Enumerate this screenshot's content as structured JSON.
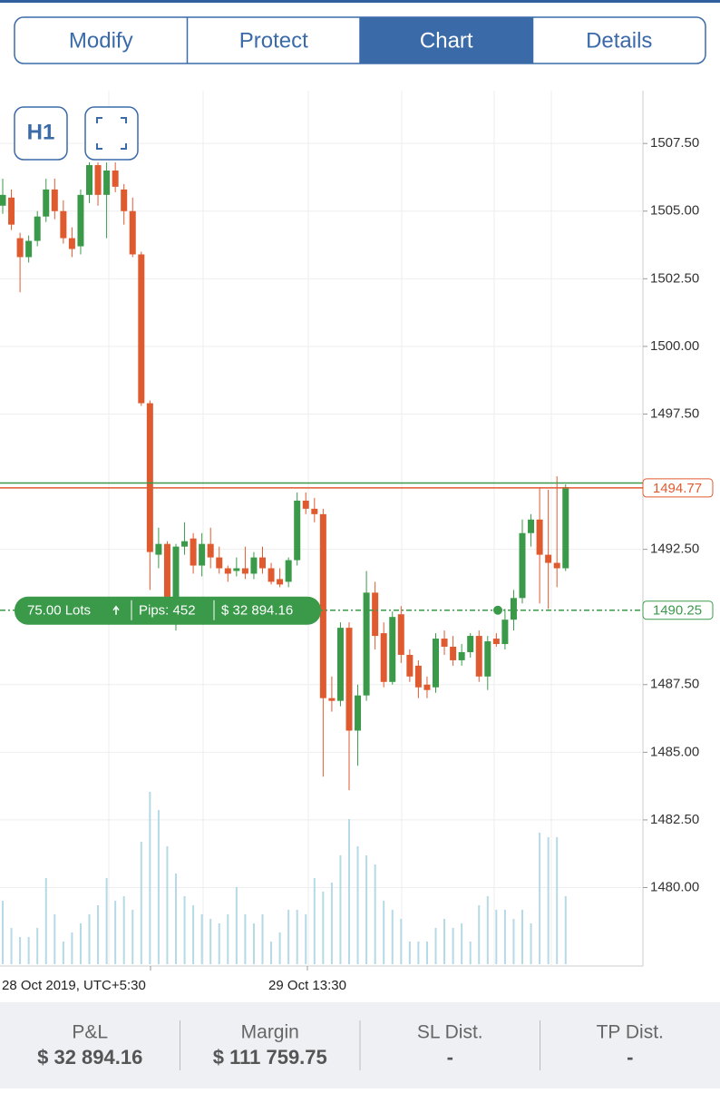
{
  "tabs": [
    "Modify",
    "Protect",
    "Chart",
    "Details"
  ],
  "active_tab": 2,
  "toolbar": {
    "timeframe": "H1"
  },
  "chart": {
    "type": "candlestick",
    "ylim": [
      1477.1,
      1509.45
    ],
    "yticks": [
      {
        "value": 1507.5,
        "label": "1507.50"
      },
      {
        "value": 1505,
        "label": "1505.00"
      },
      {
        "value": 1502.5,
        "label": "1502.50"
      },
      {
        "value": 1500,
        "label": "1500.00"
      },
      {
        "value": 1497.5,
        "label": "1497.50"
      },
      {
        "value": 1492.5,
        "label": "1492.50"
      },
      {
        "value": 1487.5,
        "label": "1487.50"
      },
      {
        "value": 1485,
        "label": "1485.00"
      },
      {
        "value": 1482.5,
        "label": "1482.50"
      },
      {
        "value": 1480,
        "label": "1480.00"
      }
    ],
    "up_color": "#3a9a4a",
    "down_color": "#e05a30",
    "volume_color": "#b5d9e6",
    "candles": [
      {
        "o": 1505.2,
        "h": 1506.2,
        "l": 1504.9,
        "c": 1505.6
      },
      {
        "o": 1505.5,
        "h": 1505.8,
        "l": 1504.3,
        "c": 1504.5
      },
      {
        "o": 1504.0,
        "h": 1504.2,
        "l": 1502.0,
        "c": 1503.3
      },
      {
        "o": 1503.3,
        "h": 1504.1,
        "l": 1503.1,
        "c": 1503.9
      },
      {
        "o": 1503.9,
        "h": 1505.0,
        "l": 1503.7,
        "c": 1504.8
      },
      {
        "o": 1504.8,
        "h": 1506.2,
        "l": 1504.6,
        "c": 1505.8
      },
      {
        "o": 1505.8,
        "h": 1506.2,
        "l": 1504.7,
        "c": 1505.0
      },
      {
        "o": 1505.0,
        "h": 1505.4,
        "l": 1503.8,
        "c": 1504.0
      },
      {
        "o": 1504.0,
        "h": 1504.4,
        "l": 1503.3,
        "c": 1503.6
      },
      {
        "o": 1503.7,
        "h": 1505.8,
        "l": 1503.4,
        "c": 1505.6
      },
      {
        "o": 1505.6,
        "h": 1506.8,
        "l": 1505.3,
        "c": 1506.7
      },
      {
        "o": 1506.7,
        "h": 1506.8,
        "l": 1505.2,
        "c": 1505.6
      },
      {
        "o": 1505.6,
        "h": 1506.8,
        "l": 1504.0,
        "c": 1506.5
      },
      {
        "o": 1506.5,
        "h": 1506.8,
        "l": 1505.7,
        "c": 1505.9
      },
      {
        "o": 1505.8,
        "h": 1506.0,
        "l": 1504.5,
        "c": 1505.0
      },
      {
        "o": 1505.0,
        "h": 1505.5,
        "l": 1503.3,
        "c": 1503.4
      },
      {
        "o": 1503.4,
        "h": 1503.5,
        "l": 1497.8,
        "c": 1497.9
      },
      {
        "o": 1497.9,
        "h": 1498.0,
        "l": 1491.0,
        "c": 1492.4
      },
      {
        "o": 1492.3,
        "h": 1493.3,
        "l": 1491.8,
        "c": 1492.7
      },
      {
        "o": 1492.7,
        "h": 1492.8,
        "l": 1489.9,
        "c": 1490.3
      },
      {
        "o": 1490.3,
        "h": 1492.7,
        "l": 1489.5,
        "c": 1492.6
      },
      {
        "o": 1492.6,
        "h": 1493.5,
        "l": 1492.3,
        "c": 1492.8
      },
      {
        "o": 1492.9,
        "h": 1493.1,
        "l": 1491.6,
        "c": 1491.9
      },
      {
        "o": 1491.9,
        "h": 1493.1,
        "l": 1491.5,
        "c": 1492.7
      },
      {
        "o": 1492.7,
        "h": 1493.3,
        "l": 1491.8,
        "c": 1492.2
      },
      {
        "o": 1492.2,
        "h": 1492.6,
        "l": 1491.6,
        "c": 1491.8
      },
      {
        "o": 1491.8,
        "h": 1491.9,
        "l": 1491.3,
        "c": 1491.6
      },
      {
        "o": 1491.7,
        "h": 1492.2,
        "l": 1491.5,
        "c": 1491.8
      },
      {
        "o": 1491.8,
        "h": 1492.6,
        "l": 1491.4,
        "c": 1491.6
      },
      {
        "o": 1491.6,
        "h": 1492.4,
        "l": 1491.4,
        "c": 1492.2
      },
      {
        "o": 1492.2,
        "h": 1492.6,
        "l": 1491.6,
        "c": 1491.8
      },
      {
        "o": 1491.8,
        "h": 1492.0,
        "l": 1491.2,
        "c": 1491.3
      },
      {
        "o": 1491.4,
        "h": 1491.8,
        "l": 1491.1,
        "c": 1491.2
      },
      {
        "o": 1491.3,
        "h": 1492.2,
        "l": 1491.1,
        "c": 1492.1
      },
      {
        "o": 1492.1,
        "h": 1494.6,
        "l": 1491.9,
        "c": 1494.3
      },
      {
        "o": 1494.3,
        "h": 1494.6,
        "l": 1493.8,
        "c": 1494.0
      },
      {
        "o": 1494.0,
        "h": 1494.4,
        "l": 1493.5,
        "c": 1493.8
      },
      {
        "o": 1493.8,
        "h": 1494.0,
        "l": 1484.1,
        "c": 1487.0
      },
      {
        "o": 1487.0,
        "h": 1487.8,
        "l": 1486.5,
        "c": 1486.9
      },
      {
        "o": 1486.9,
        "h": 1489.8,
        "l": 1486.7,
        "c": 1489.6
      },
      {
        "o": 1489.6,
        "h": 1489.8,
        "l": 1483.6,
        "c": 1485.8
      },
      {
        "o": 1485.8,
        "h": 1487.5,
        "l": 1484.5,
        "c": 1487.1
      },
      {
        "o": 1487.1,
        "h": 1491.7,
        "l": 1486.9,
        "c": 1490.9
      },
      {
        "o": 1490.9,
        "h": 1491.3,
        "l": 1488.8,
        "c": 1489.3
      },
      {
        "o": 1489.4,
        "h": 1489.8,
        "l": 1487.4,
        "c": 1487.6
      },
      {
        "o": 1487.6,
        "h": 1490.2,
        "l": 1487.5,
        "c": 1490.0
      },
      {
        "o": 1490.1,
        "h": 1490.4,
        "l": 1488.3,
        "c": 1488.6
      },
      {
        "o": 1488.6,
        "h": 1488.8,
        "l": 1487.6,
        "c": 1487.8
      },
      {
        "o": 1488.2,
        "h": 1488.4,
        "l": 1487.0,
        "c": 1487.4
      },
      {
        "o": 1487.5,
        "h": 1487.8,
        "l": 1487.0,
        "c": 1487.3
      },
      {
        "o": 1487.4,
        "h": 1489.4,
        "l": 1487.2,
        "c": 1489.2
      },
      {
        "o": 1489.2,
        "h": 1489.5,
        "l": 1488.6,
        "c": 1488.9
      },
      {
        "o": 1488.9,
        "h": 1489.3,
        "l": 1488.2,
        "c": 1488.4
      },
      {
        "o": 1488.4,
        "h": 1489.0,
        "l": 1488.2,
        "c": 1488.7
      },
      {
        "o": 1488.7,
        "h": 1489.4,
        "l": 1488.5,
        "c": 1489.3
      },
      {
        "o": 1489.3,
        "h": 1489.5,
        "l": 1487.6,
        "c": 1487.8
      },
      {
        "o": 1487.8,
        "h": 1489.3,
        "l": 1487.3,
        "c": 1489.1
      },
      {
        "o": 1489.2,
        "h": 1489.4,
        "l": 1488.9,
        "c": 1489.0
      },
      {
        "o": 1489.0,
        "h": 1490.3,
        "l": 1488.8,
        "c": 1489.9
      },
      {
        "o": 1489.9,
        "h": 1491.0,
        "l": 1489.5,
        "c": 1490.7
      },
      {
        "o": 1490.7,
        "h": 1493.6,
        "l": 1490.5,
        "c": 1493.1
      },
      {
        "o": 1493.1,
        "h": 1493.8,
        "l": 1492.6,
        "c": 1493.6
      },
      {
        "o": 1493.6,
        "h": 1494.8,
        "l": 1490.5,
        "c": 1492.3
      },
      {
        "o": 1492.3,
        "h": 1494.7,
        "l": 1490.3,
        "c": 1492.0
      },
      {
        "o": 1492.0,
        "h": 1495.2,
        "l": 1491.1,
        "c": 1491.8
      },
      {
        "o": 1491.8,
        "h": 1494.9,
        "l": 1491.7,
        "c": 1494.8
      }
    ],
    "volume": [
      70,
      40,
      30,
      30,
      40,
      95,
      55,
      25,
      35,
      45,
      55,
      65,
      95,
      70,
      75,
      60,
      135,
      190,
      170,
      130,
      100,
      75,
      65,
      55,
      50,
      45,
      55,
      85,
      55,
      45,
      55,
      25,
      35,
      60,
      60,
      55,
      95,
      80,
      90,
      120,
      160,
      130,
      120,
      110,
      70,
      60,
      50,
      25,
      25,
      25,
      40,
      50,
      40,
      45,
      25,
      65,
      75,
      60,
      60,
      50,
      60,
      45,
      145,
      140,
      140,
      75
    ],
    "lines": [
      {
        "value": 1494.95,
        "color": "#3a9a4a"
      },
      {
        "value": 1494.77,
        "color": "#e05a30",
        "labelled": true
      },
      {
        "value": 1490.25,
        "color": "#3a9a4a",
        "labelled": true,
        "dashed": true
      }
    ],
    "x_labels": [
      "28 Oct 2019, UTC+5:30",
      "29 Oct 13:30"
    ],
    "position": {
      "lots": "75.00 Lots",
      "pips": "Pips: 452",
      "pnl": "$ 32 894.16"
    }
  },
  "footer": [
    {
      "label": "P&L",
      "value": "$ 32 894.16"
    },
    {
      "label": "Margin",
      "value": "$ 111 759.75"
    },
    {
      "label": "SL Dist.",
      "value": "-"
    },
    {
      "label": "TP Dist.",
      "value": "-"
    }
  ]
}
